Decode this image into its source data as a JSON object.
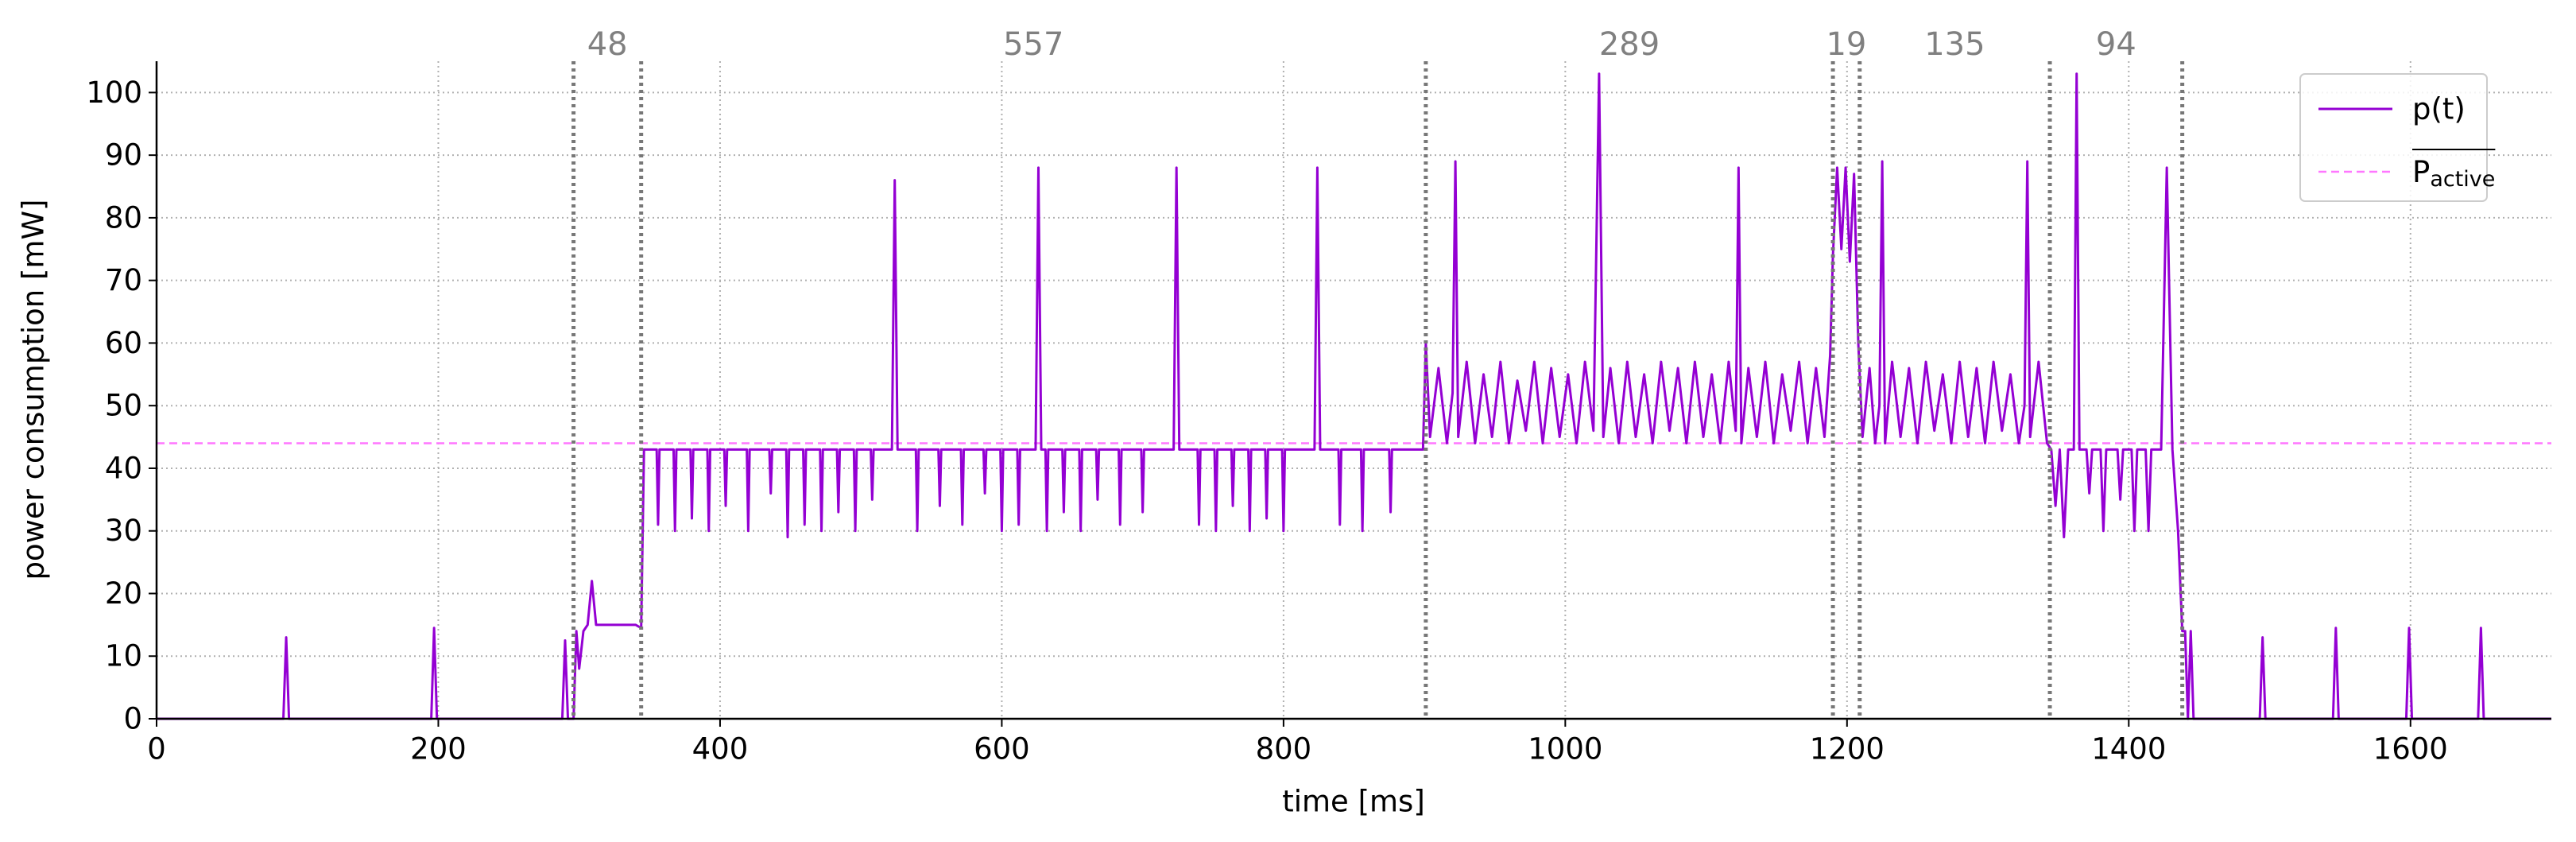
{
  "chart_data": {
    "type": "line",
    "xlabel": "time [ms]",
    "ylabel": "power consumption [mW]",
    "xlim": [
      0,
      1700
    ],
    "ylim": [
      0,
      105
    ],
    "xticks": [
      0,
      200,
      400,
      600,
      800,
      1000,
      1200,
      1400,
      1600
    ],
    "yticks": [
      0,
      10,
      20,
      30,
      40,
      50,
      60,
      70,
      80,
      90,
      100
    ],
    "grid": true,
    "legend": "upper right",
    "markers": [
      296,
      344,
      901,
      1190,
      1209,
      1344,
      1438
    ],
    "durations": [
      48,
      557,
      289,
      19,
      135,
      94
    ],
    "reference": {
      "value": 44,
      "color": "#ff77ff",
      "label": "P",
      "label_sub": "active"
    },
    "x": [
      0,
      90,
      92,
      94,
      195,
      197,
      199,
      288,
      290,
      292,
      296,
      298,
      300,
      303,
      306,
      309,
      312,
      340,
      344,
      346,
      355,
      356,
      357,
      367,
      368,
      369,
      379,
      380,
      381,
      391,
      392,
      393,
      403,
      404,
      405,
      419,
      420,
      421,
      435,
      436,
      437,
      447,
      448,
      449,
      459,
      460,
      461,
      471,
      472,
      473,
      483,
      484,
      485,
      495,
      496,
      497,
      507,
      508,
      509,
      522,
      524,
      526,
      539,
      540,
      541,
      555,
      556,
      557,
      571,
      572,
      573,
      587,
      588,
      589,
      599,
      600,
      601,
      611,
      612,
      613,
      624,
      626,
      628,
      631,
      632,
      633,
      643,
      644,
      645,
      655,
      656,
      657,
      667,
      668,
      669,
      683,
      684,
      685,
      699,
      700,
      701,
      722,
      724,
      726,
      739,
      740,
      741,
      751,
      752,
      753,
      763,
      764,
      765,
      775,
      776,
      777,
      787,
      788,
      789,
      799,
      800,
      801,
      822,
      824,
      826,
      839,
      840,
      841,
      855,
      856,
      857,
      875,
      876,
      877,
      899,
      901,
      904,
      910,
      916,
      920,
      922,
      924,
      930,
      936,
      942,
      948,
      954,
      960,
      966,
      972,
      978,
      984,
      990,
      996,
      1002,
      1008,
      1014,
      1020,
      1024,
      1027,
      1032,
      1038,
      1044,
      1050,
      1056,
      1062,
      1068,
      1074,
      1080,
      1086,
      1092,
      1098,
      1104,
      1110,
      1116,
      1121,
      1123,
      1125,
      1130,
      1136,
      1142,
      1148,
      1154,
      1160,
      1166,
      1172,
      1178,
      1184,
      1188,
      1190,
      1193,
      1196,
      1199,
      1202,
      1205,
      1208,
      1211,
      1216,
      1220,
      1223,
      1225,
      1227,
      1232,
      1238,
      1244,
      1250,
      1256,
      1262,
      1268,
      1274,
      1280,
      1286,
      1292,
      1298,
      1304,
      1310,
      1316,
      1322,
      1326,
      1328,
      1330,
      1336,
      1342,
      1345,
      1348,
      1351,
      1354,
      1357,
      1361,
      1363,
      1365,
      1370,
      1372,
      1374,
      1380,
      1382,
      1384,
      1392,
      1394,
      1396,
      1402,
      1404,
      1406,
      1412,
      1414,
      1416,
      1423,
      1427,
      1431,
      1435,
      1438,
      1440,
      1442,
      1444,
      1446,
      1493,
      1495,
      1497,
      1545,
      1547,
      1549,
      1597,
      1599,
      1601,
      1648,
      1650,
      1652,
      1700
    ],
    "series": [
      {
        "name": "p(t)",
        "color": "#9400d3",
        "values": [
          0,
          0,
          13,
          0,
          0,
          14.5,
          0,
          0,
          12.5,
          0,
          0,
          14,
          8,
          14,
          15,
          22,
          15,
          15,
          14.5,
          43,
          43,
          31,
          43,
          43,
          30,
          43,
          43,
          32,
          43,
          43,
          30,
          43,
          43,
          34,
          43,
          43,
          30,
          43,
          43,
          36,
          43,
          43,
          29,
          43,
          43,
          31,
          43,
          43,
          30,
          43,
          43,
          33,
          43,
          43,
          30,
          43,
          43,
          35,
          43,
          43,
          86,
          43,
          43,
          30,
          43,
          43,
          34,
          43,
          43,
          31,
          43,
          43,
          36,
          43,
          43,
          30,
          43,
          43,
          31,
          43,
          43,
          88,
          43,
          43,
          30,
          43,
          43,
          33,
          43,
          43,
          30,
          43,
          43,
          35,
          43,
          43,
          31,
          43,
          43,
          33,
          43,
          43,
          88,
          43,
          43,
          31,
          43,
          43,
          30,
          43,
          43,
          34,
          43,
          43,
          30,
          43,
          43,
          32,
          43,
          43,
          30,
          43,
          43,
          88,
          43,
          43,
          31,
          43,
          43,
          30,
          43,
          43,
          33,
          43,
          43,
          60,
          45,
          56,
          44,
          52,
          89,
          45,
          57,
          44,
          55,
          45,
          57,
          44,
          54,
          46,
          57,
          44,
          56,
          45,
          55,
          44,
          57,
          46,
          103,
          45,
          56,
          44,
          57,
          45,
          55,
          44,
          57,
          46,
          56,
          44,
          57,
          45,
          55,
          44,
          57,
          46,
          88,
          44,
          56,
          45,
          57,
          44,
          55,
          46,
          57,
          44,
          56,
          45,
          58,
          74,
          88,
          75,
          88,
          73,
          87,
          60,
          45,
          56,
          44,
          50,
          89,
          44,
          57,
          45,
          56,
          44,
          57,
          46,
          55,
          44,
          57,
          45,
          56,
          44,
          57,
          46,
          55,
          44,
          50,
          89,
          45,
          57,
          44,
          43,
          34,
          43,
          29,
          43,
          43,
          103,
          43,
          43,
          36,
          43,
          43,
          30,
          43,
          43,
          35,
          43,
          43,
          30,
          43,
          43,
          30,
          43,
          43,
          88,
          43,
          30,
          14,
          14,
          0,
          14,
          0,
          0,
          13,
          0,
          0,
          14.5,
          0,
          0,
          14.5,
          0,
          0,
          14.5,
          0,
          0
        ]
      }
    ]
  }
}
